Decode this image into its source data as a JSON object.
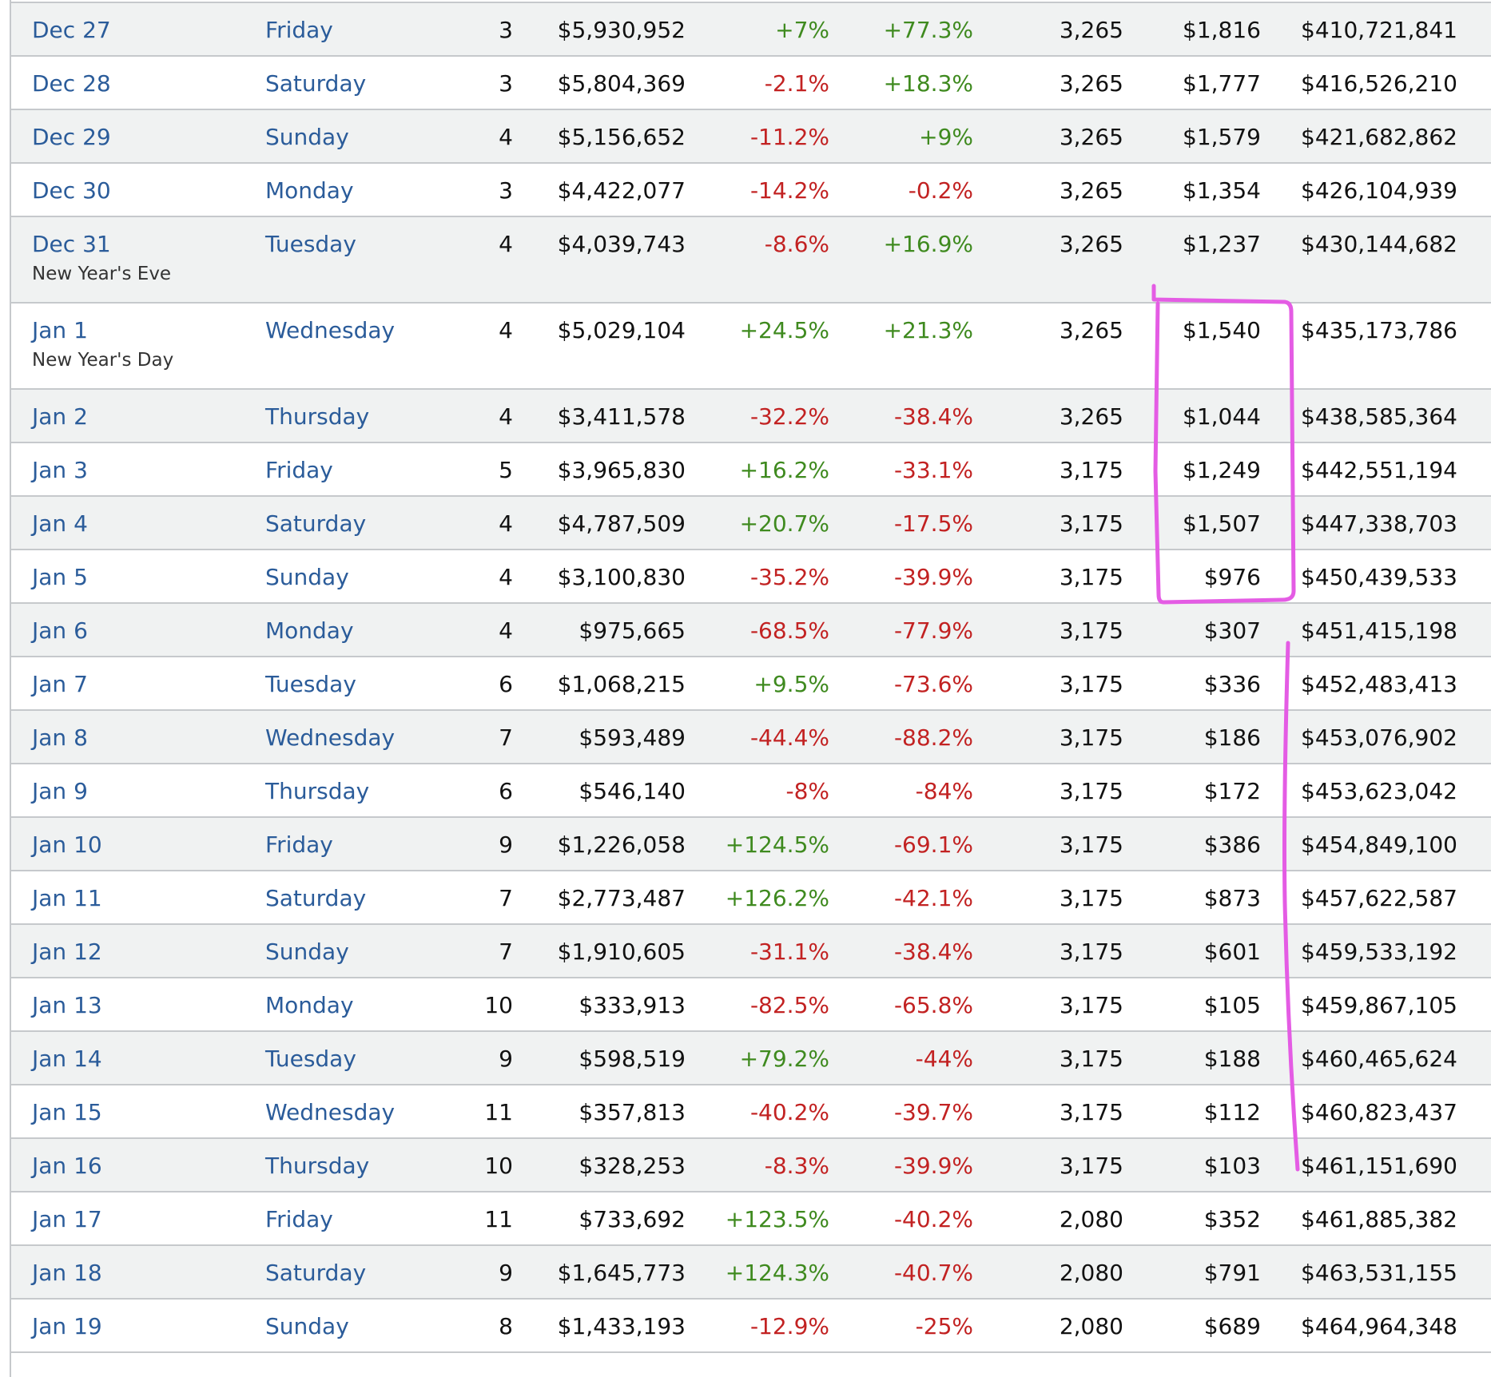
{
  "rows": [
    {
      "date": "Dec 27",
      "day": "Friday",
      "rank": "3",
      "gross": "$5,930,952",
      "change_day": "+7%",
      "change_week": "+77.3%",
      "theaters": "3,265",
      "avg": "$1,816",
      "total": "$410,721,841",
      "holiday": ""
    },
    {
      "date": "Dec 28",
      "day": "Saturday",
      "rank": "3",
      "gross": "$5,804,369",
      "change_day": "-2.1%",
      "change_week": "+18.3%",
      "theaters": "3,265",
      "avg": "$1,777",
      "total": "$416,526,210",
      "holiday": ""
    },
    {
      "date": "Dec 29",
      "day": "Sunday",
      "rank": "4",
      "gross": "$5,156,652",
      "change_day": "-11.2%",
      "change_week": "+9%",
      "theaters": "3,265",
      "avg": "$1,579",
      "total": "$421,682,862",
      "holiday": ""
    },
    {
      "date": "Dec 30",
      "day": "Monday",
      "rank": "3",
      "gross": "$4,422,077",
      "change_day": "-14.2%",
      "change_week": "-0.2%",
      "theaters": "3,265",
      "avg": "$1,354",
      "total": "$426,104,939",
      "holiday": ""
    },
    {
      "date": "Dec 31",
      "day": "Tuesday",
      "rank": "4",
      "gross": "$4,039,743",
      "change_day": "-8.6%",
      "change_week": "+16.9%",
      "theaters": "3,265",
      "avg": "$1,237",
      "total": "$430,144,682",
      "holiday": "New Year's Eve"
    },
    {
      "date": "Jan 1",
      "day": "Wednesday",
      "rank": "4",
      "gross": "$5,029,104",
      "change_day": "+24.5%",
      "change_week": "+21.3%",
      "theaters": "3,265",
      "avg": "$1,540",
      "total": "$435,173,786",
      "holiday": "New Year's Day"
    },
    {
      "date": "Jan 2",
      "day": "Thursday",
      "rank": "4",
      "gross": "$3,411,578",
      "change_day": "-32.2%",
      "change_week": "-38.4%",
      "theaters": "3,265",
      "avg": "$1,044",
      "total": "$438,585,364",
      "holiday": ""
    },
    {
      "date": "Jan 3",
      "day": "Friday",
      "rank": "5",
      "gross": "$3,965,830",
      "change_day": "+16.2%",
      "change_week": "-33.1%",
      "theaters": "3,175",
      "avg": "$1,249",
      "total": "$442,551,194",
      "holiday": ""
    },
    {
      "date": "Jan 4",
      "day": "Saturday",
      "rank": "4",
      "gross": "$4,787,509",
      "change_day": "+20.7%",
      "change_week": "-17.5%",
      "theaters": "3,175",
      "avg": "$1,507",
      "total": "$447,338,703",
      "holiday": ""
    },
    {
      "date": "Jan 5",
      "day": "Sunday",
      "rank": "4",
      "gross": "$3,100,830",
      "change_day": "-35.2%",
      "change_week": "-39.9%",
      "theaters": "3,175",
      "avg": "$976",
      "total": "$450,439,533",
      "holiday": ""
    },
    {
      "date": "Jan 6",
      "day": "Monday",
      "rank": "4",
      "gross": "$975,665",
      "change_day": "-68.5%",
      "change_week": "-77.9%",
      "theaters": "3,175",
      "avg": "$307",
      "total": "$451,415,198",
      "holiday": ""
    },
    {
      "date": "Jan 7",
      "day": "Tuesday",
      "rank": "6",
      "gross": "$1,068,215",
      "change_day": "+9.5%",
      "change_week": "-73.6%",
      "theaters": "3,175",
      "avg": "$336",
      "total": "$452,483,413",
      "holiday": ""
    },
    {
      "date": "Jan 8",
      "day": "Wednesday",
      "rank": "7",
      "gross": "$593,489",
      "change_day": "-44.4%",
      "change_week": "-88.2%",
      "theaters": "3,175",
      "avg": "$186",
      "total": "$453,076,902",
      "holiday": ""
    },
    {
      "date": "Jan 9",
      "day": "Thursday",
      "rank": "6",
      "gross": "$546,140",
      "change_day": "-8%",
      "change_week": "-84%",
      "theaters": "3,175",
      "avg": "$172",
      "total": "$453,623,042",
      "holiday": ""
    },
    {
      "date": "Jan 10",
      "day": "Friday",
      "rank": "9",
      "gross": "$1,226,058",
      "change_day": "+124.5%",
      "change_week": "-69.1%",
      "theaters": "3,175",
      "avg": "$386",
      "total": "$454,849,100",
      "holiday": ""
    },
    {
      "date": "Jan 11",
      "day": "Saturday",
      "rank": "7",
      "gross": "$2,773,487",
      "change_day": "+126.2%",
      "change_week": "-42.1%",
      "theaters": "3,175",
      "avg": "$873",
      "total": "$457,622,587",
      "holiday": ""
    },
    {
      "date": "Jan 12",
      "day": "Sunday",
      "rank": "7",
      "gross": "$1,910,605",
      "change_day": "-31.1%",
      "change_week": "-38.4%",
      "theaters": "3,175",
      "avg": "$601",
      "total": "$459,533,192",
      "holiday": ""
    },
    {
      "date": "Jan 13",
      "day": "Monday",
      "rank": "10",
      "gross": "$333,913",
      "change_day": "-82.5%",
      "change_week": "-65.8%",
      "theaters": "3,175",
      "avg": "$105",
      "total": "$459,867,105",
      "holiday": ""
    },
    {
      "date": "Jan 14",
      "day": "Tuesday",
      "rank": "9",
      "gross": "$598,519",
      "change_day": "+79.2%",
      "change_week": "-44%",
      "theaters": "3,175",
      "avg": "$188",
      "total": "$460,465,624",
      "holiday": ""
    },
    {
      "date": "Jan 15",
      "day": "Wednesday",
      "rank": "11",
      "gross": "$357,813",
      "change_day": "-40.2%",
      "change_week": "-39.7%",
      "theaters": "3,175",
      "avg": "$112",
      "total": "$460,823,437",
      "holiday": ""
    },
    {
      "date": "Jan 16",
      "day": "Thursday",
      "rank": "10",
      "gross": "$328,253",
      "change_day": "-8.3%",
      "change_week": "-39.9%",
      "theaters": "3,175",
      "avg": "$103",
      "total": "$461,151,690",
      "holiday": ""
    },
    {
      "date": "Jan 17",
      "day": "Friday",
      "rank": "11",
      "gross": "$733,692",
      "change_day": "+123.5%",
      "change_week": "-40.2%",
      "theaters": "2,080",
      "avg": "$352",
      "total": "$461,885,382",
      "holiday": ""
    },
    {
      "date": "Jan 18",
      "day": "Saturday",
      "rank": "9",
      "gross": "$1,645,773",
      "change_day": "+124.3%",
      "change_week": "-40.7%",
      "theaters": "2,080",
      "avg": "$791",
      "total": "$463,531,155",
      "holiday": ""
    },
    {
      "date": "Jan 19",
      "day": "Sunday",
      "rank": "8",
      "gross": "$1,433,193",
      "change_day": "-12.9%",
      "change_week": "-25%",
      "theaters": "2,080",
      "avg": "$689",
      "total": "$464,964,348",
      "holiday": ""
    }
  ],
  "colors": {
    "link": "#2b5c9a",
    "positive": "#3f8a1f",
    "negative": "#c22222",
    "annotation": "#e45ce4"
  }
}
